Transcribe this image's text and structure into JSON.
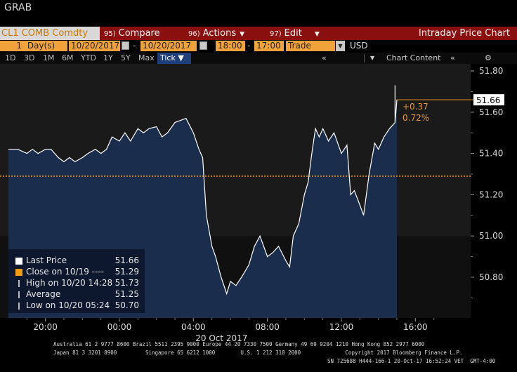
{
  "window": {
    "title": "GRAB"
  },
  "toolbar1": {
    "ticker": "CL1 COMB Comdty",
    "compare_num": "95)",
    "compare_label": "Compare",
    "actions_num": "96)",
    "actions_label": "Actions",
    "edit_num": "97)",
    "edit_label": "Edit",
    "title": "Intraday Price Chart"
  },
  "toolbar2": {
    "period_count": "1",
    "period_unit": "Day(s)",
    "start_date": "10/20/2017",
    "end_date": "10/20/2017",
    "start_time": "18:00",
    "end_time": "17:00",
    "type": "Trade",
    "currency": "USD"
  },
  "toolbar3": {
    "ranges": [
      "1D",
      "3D",
      "1M",
      "6M",
      "YTD",
      "1Y",
      "5Y",
      "Max"
    ],
    "tick_label": "Tick ▼",
    "chart_content": "Chart Content"
  },
  "legend": [
    {
      "label": "Last Price",
      "value": "51.66",
      "color": "#ffffff"
    },
    {
      "label": "Close on 10/19  ----",
      "value": "51.29",
      "color": "#f39c12"
    },
    {
      "label": "High on 10/20 14:28",
      "value": "51.73",
      "color": "#bbbbbb"
    },
    {
      "label": "Average",
      "value": "51.25",
      "color": "#bbbbbb"
    },
    {
      "label": "Low on 10/20 05:24",
      "value": "50.70",
      "color": "#bbbbbb"
    }
  ],
  "annotation": {
    "change": "+0.37",
    "pct": "0.72%",
    "last_tag": "51.66"
  },
  "date_label": "20 Oct 2017",
  "footer": {
    "line1": "Australia 61 2 9777 8600 Brazil 5511 2395 9000 Europe 44 20 7330 7500 Germany 49 69 9204 1210 Hong Kong 852 2977 6000",
    "line2": "Japan 81 3 3201 8900         Singapore 65 6212 1000        U.S. 1 212 318 2000              Copyright 2017 Bloomberg Finance L.P.",
    "line3": "SN 725688 H444-166-1 20-Oct-17 16:52:24 VET  GMT-4:00"
  },
  "colors": {
    "area": "#1b2d4d",
    "line": "#ffffff",
    "close_line": "#f39c12",
    "bg": "#1a1a1a"
  },
  "chart_data": {
    "type": "area",
    "title": "",
    "ylim": [
      50.6,
      51.85
    ],
    "yticks": [
      50.8,
      51.0,
      51.2,
      51.4,
      51.6,
      51.8
    ],
    "ytick_labels": [
      "50.80",
      "51.00",
      "51.20",
      "51.40",
      "51.60",
      "51.80"
    ],
    "xtick_labels": [
      "20:00",
      "00:00",
      "04:00",
      "08:00",
      "12:00",
      "16:00"
    ],
    "xticks_hours": [
      20,
      24,
      28,
      32,
      36,
      40
    ],
    "xlim_hours": [
      18,
      41.5
    ],
    "close_ref": 51.29,
    "last": 51.66,
    "series": [
      {
        "name": "Last Price",
        "x": [
          18.0,
          18.5,
          19.0,
          19.3,
          19.6,
          20.0,
          20.3,
          20.7,
          21.0,
          21.3,
          21.6,
          22.0,
          22.3,
          22.7,
          23.0,
          23.3,
          23.6,
          24.0,
          24.3,
          24.6,
          25.0,
          25.3,
          25.6,
          26.0,
          26.3,
          26.6,
          27.0,
          27.3,
          27.6,
          28.0,
          28.3,
          28.5,
          28.7,
          29.0,
          29.2,
          29.5,
          29.8,
          30.0,
          30.3,
          30.6,
          31.0,
          31.3,
          31.6,
          32.0,
          32.3,
          32.6,
          33.0,
          33.2,
          33.4,
          33.7,
          34.0,
          34.2,
          34.4,
          34.6,
          34.8,
          35.0,
          35.3,
          35.6,
          36.0,
          36.3,
          36.5,
          36.7,
          37.0,
          37.2,
          37.5,
          37.8,
          38.0,
          38.3,
          38.6,
          38.9,
          39.0
        ],
        "y": [
          51.42,
          51.42,
          51.4,
          51.42,
          51.4,
          51.42,
          51.42,
          51.38,
          51.36,
          51.38,
          51.36,
          51.38,
          51.4,
          51.42,
          51.4,
          51.42,
          51.48,
          51.46,
          51.5,
          51.46,
          51.52,
          51.5,
          51.52,
          51.53,
          51.48,
          51.5,
          51.55,
          51.56,
          51.57,
          51.5,
          51.42,
          51.38,
          51.1,
          50.95,
          50.9,
          50.8,
          50.72,
          50.78,
          50.76,
          50.8,
          50.86,
          50.95,
          51.0,
          50.9,
          50.92,
          50.95,
          50.88,
          50.85,
          51.0,
          51.06,
          51.2,
          51.26,
          51.4,
          51.52,
          51.48,
          51.52,
          51.46,
          51.5,
          51.4,
          51.44,
          51.2,
          51.22,
          51.15,
          51.1,
          51.3,
          51.45,
          51.42,
          51.48,
          51.52,
          51.55,
          51.66
        ]
      }
    ]
  }
}
